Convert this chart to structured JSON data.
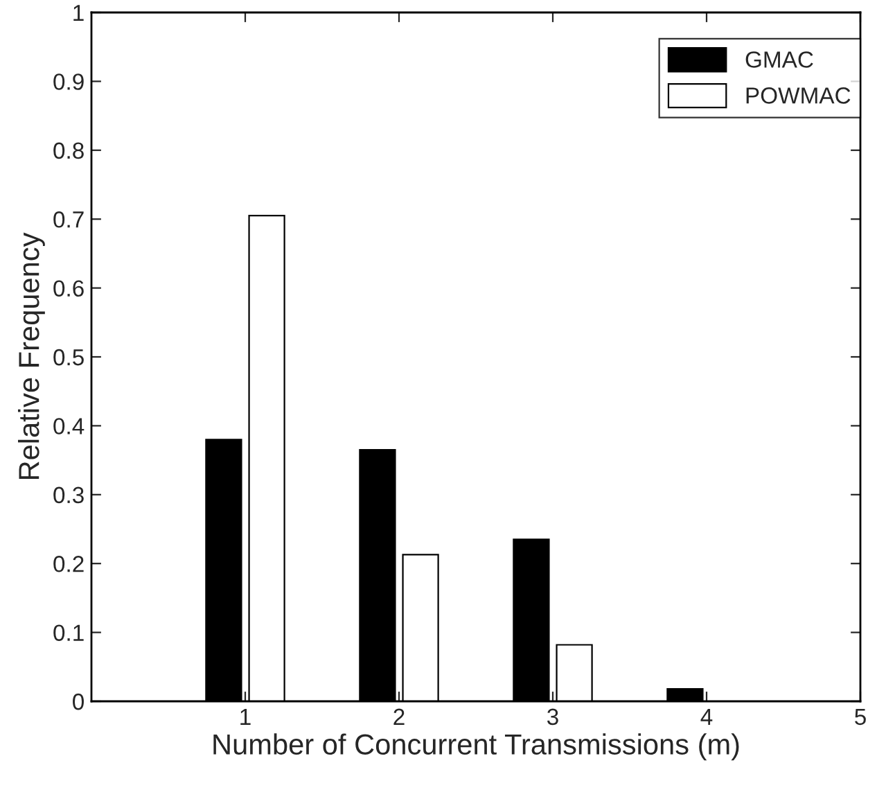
{
  "chart_data": {
    "type": "bar",
    "xlabel": "Number of Concurrent Transmissions (m)",
    "ylabel": "Relative Frequency",
    "x": [
      1,
      2,
      3,
      4
    ],
    "series": [
      {
        "name": "GMAC",
        "color": "#000000",
        "values": [
          0.38,
          0.365,
          0.235,
          0.018
        ]
      },
      {
        "name": "POWMAC",
        "color": "#ffffff",
        "values": [
          0.705,
          0.213,
          0.082,
          0.0
        ]
      }
    ],
    "xlim": [
      0,
      5
    ],
    "xticks": [
      1,
      2,
      3,
      4,
      5
    ],
    "ylim": [
      0,
      1
    ],
    "yticks": [
      0,
      0.1,
      0.2,
      0.3,
      0.4,
      0.5,
      0.6,
      0.7,
      0.8,
      0.9,
      1
    ],
    "grid": false,
    "legend": "top right"
  }
}
